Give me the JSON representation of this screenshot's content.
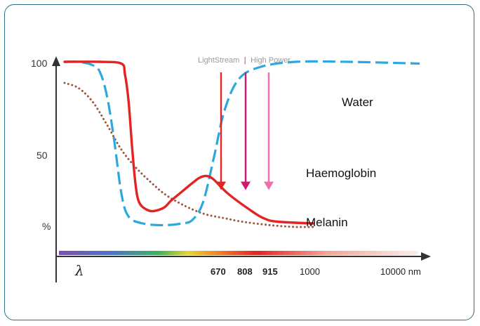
{
  "chart_data": {
    "type": "line",
    "ylabel": "%",
    "xlabel": "λ",
    "y_ticks": [
      "100",
      "50"
    ],
    "x_ticks": [
      {
        "label": "670",
        "bold": true
      },
      {
        "label": "808",
        "bold": true
      },
      {
        "label": "915",
        "bold": true
      },
      {
        "label": "1000",
        "bold": false
      },
      {
        "label": "10000 nm",
        "bold": false
      }
    ],
    "ylim": [
      0,
      100
    ],
    "series": [
      {
        "name": "Water",
        "color": "#2aa8e0",
        "style": "dashed",
        "points": [
          [
            0.0,
            100
          ],
          [
            0.04,
            100
          ],
          [
            0.08,
            98
          ],
          [
            0.1,
            94
          ],
          [
            0.12,
            80
          ],
          [
            0.14,
            55
          ],
          [
            0.16,
            25
          ],
          [
            0.18,
            12
          ],
          [
            0.22,
            8
          ],
          [
            0.28,
            7
          ],
          [
            0.33,
            8
          ],
          [
            0.36,
            10
          ],
          [
            0.39,
            20
          ],
          [
            0.42,
            45
          ],
          [
            0.45,
            72
          ],
          [
            0.49,
            90
          ],
          [
            0.55,
            97
          ],
          [
            0.65,
            100
          ],
          [
            0.8,
            100
          ],
          [
            1.0,
            99
          ]
        ]
      },
      {
        "name": "Haemoglobin",
        "color": "#e42323",
        "style": "solid",
        "points": [
          [
            0.0,
            100
          ],
          [
            0.1,
            100
          ],
          [
            0.16,
            99
          ],
          [
            0.17,
            93
          ],
          [
            0.18,
            78
          ],
          [
            0.19,
            52
          ],
          [
            0.2,
            30
          ],
          [
            0.21,
            20
          ],
          [
            0.23,
            16
          ],
          [
            0.25,
            15
          ],
          [
            0.28,
            17
          ],
          [
            0.3,
            21
          ],
          [
            0.33,
            26
          ],
          [
            0.36,
            31
          ],
          [
            0.38,
            34
          ],
          [
            0.4,
            35
          ],
          [
            0.42,
            33
          ],
          [
            0.46,
            25
          ],
          [
            0.52,
            16
          ],
          [
            0.56,
            11
          ],
          [
            0.6,
            9
          ],
          [
            0.7,
            8
          ]
        ]
      },
      {
        "name": "Melanin",
        "color": "#9b5a3b",
        "style": "dotted",
        "points": [
          [
            0.0,
            88
          ],
          [
            0.04,
            85
          ],
          [
            0.08,
            77
          ],
          [
            0.12,
            64
          ],
          [
            0.16,
            50
          ],
          [
            0.2,
            40
          ],
          [
            0.24,
            32
          ],
          [
            0.28,
            25
          ],
          [
            0.32,
            20
          ],
          [
            0.36,
            16
          ],
          [
            0.4,
            13
          ],
          [
            0.45,
            11
          ],
          [
            0.5,
            9
          ],
          [
            0.58,
            7
          ],
          [
            0.65,
            6
          ],
          [
            0.7,
            6
          ]
        ]
      }
    ],
    "series_labels": [
      "Water",
      "Haemoglobin",
      "Melanin"
    ],
    "annotations": {
      "label_left": "LightStream",
      "separator": "|",
      "label_right": "High Power",
      "arrows": [
        {
          "wavelength": "670",
          "color": "#e42323",
          "tip": 27
        },
        {
          "wavelength": "808",
          "color": "#d6166e",
          "tip": 27
        },
        {
          "wavelength": "915",
          "color": "#ee6fb0",
          "tip": 27
        }
      ]
    }
  }
}
